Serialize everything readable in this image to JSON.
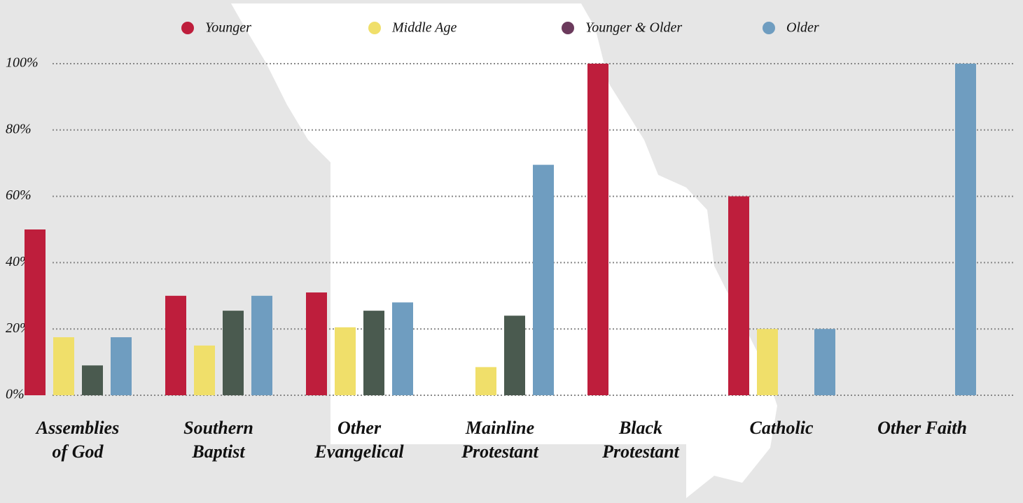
{
  "chart_data": {
    "type": "bar",
    "categories": [
      [
        "Assemblies",
        "of God"
      ],
      [
        "Southern",
        "Baptist"
      ],
      [
        "Other",
        "Evangelical"
      ],
      [
        "Mainline",
        "Protestant"
      ],
      [
        "Black",
        "Protestant"
      ],
      [
        "Catholic"
      ],
      [
        "Other Faith"
      ]
    ],
    "series": [
      {
        "name": "Younger",
        "color": "#be1e3c",
        "values": [
          50,
          30,
          31,
          0,
          100,
          60,
          0
        ]
      },
      {
        "name": "Middle Age",
        "color": "#f0df6a",
        "values": [
          17.5,
          15,
          20.5,
          8.5,
          0,
          20,
          0
        ]
      },
      {
        "name": "Younger & Older",
        "color": "#4a5a4f",
        "legend_color": "#6b3a5c",
        "values": [
          9,
          25.5,
          25.5,
          24,
          0,
          0,
          0
        ]
      },
      {
        "name": "Older",
        "color": "#6f9dc0",
        "values": [
          17.5,
          30,
          28,
          69.5,
          0,
          20,
          100
        ]
      }
    ],
    "ylim": [
      0,
      100
    ],
    "yticks": [
      {
        "value": 0,
        "label": "0%"
      },
      {
        "value": 20,
        "label": "20%"
      },
      {
        "value": 40,
        "label": "40%"
      },
      {
        "value": 60,
        "label": "60%"
      },
      {
        "value": 80,
        "label": "80%"
      },
      {
        "value": 100,
        "label": "100%"
      }
    ],
    "grid": true
  }
}
